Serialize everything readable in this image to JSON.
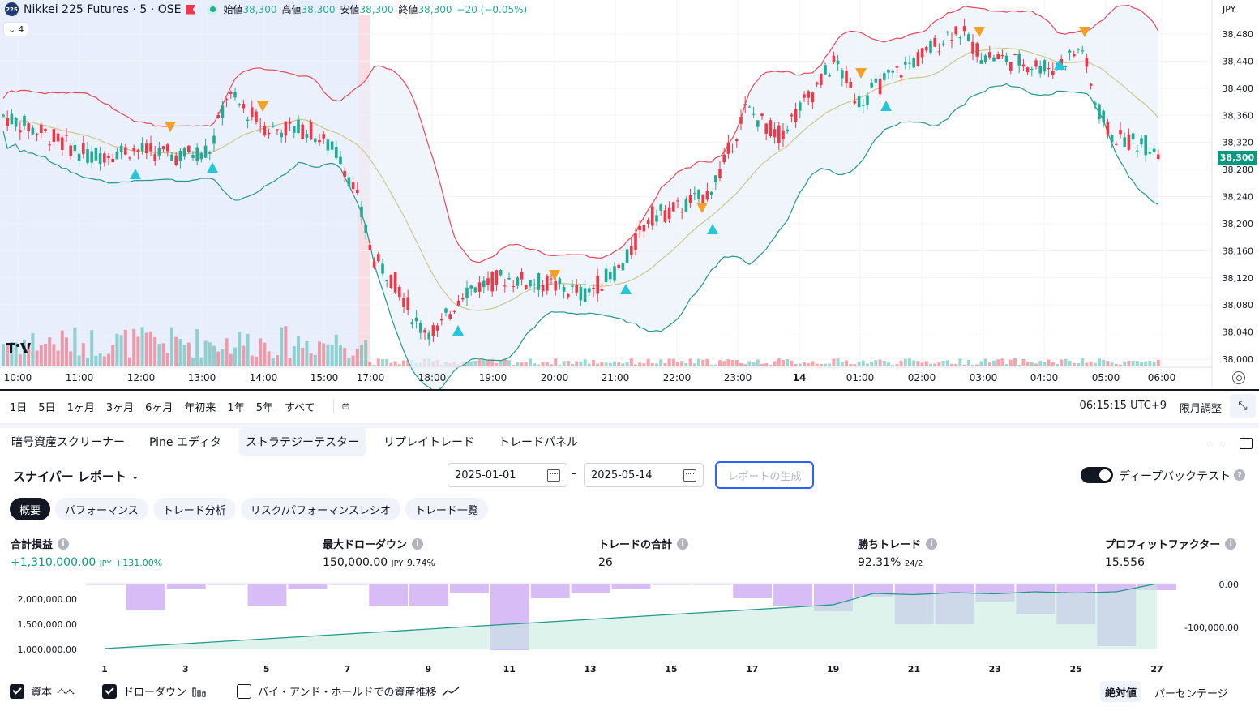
{
  "legend": {
    "badge": "225",
    "symbol": "Nikkei 225 Futures · 5 · OSE",
    "open_label": "始値",
    "open": "38,300",
    "high_label": "高値",
    "high": "38,300",
    "low_label": "安値",
    "low": "38,300",
    "close_label": "終値",
    "close": "38,300",
    "change": "−20 (−0.05%)",
    "indicator_count": "4"
  },
  "price_axis": {
    "currency": "JPY",
    "ticks": [
      "38,480",
      "38,440",
      "38,400",
      "38,360",
      "38,320",
      "38,280",
      "38,240",
      "38,200",
      "38,160",
      "38,120",
      "38,080",
      "38,040",
      "38,000"
    ],
    "last_price": "38,300"
  },
  "time_axis": [
    "10:00",
    "11:00",
    "12:00",
    "13:00",
    "14:00",
    "15:00",
    "17:00",
    "18:00",
    "19:00",
    "20:00",
    "21:00",
    "22:00",
    "23:00",
    "14",
    "01:00",
    "02:00",
    "03:00",
    "04:00",
    "05:00",
    "06:00"
  ],
  "colors": {
    "up": "#22ab94",
    "down": "#f23645",
    "upper_band": "#e8475a",
    "lower_band": "#22998a",
    "basis": "#c8c98a",
    "buy_marker": "#26c6da",
    "sell_marker": "#f5a023",
    "accent": "#2962ff"
  },
  "range_bar": {
    "buttons": [
      "1日",
      "5日",
      "1ヶ月",
      "3ヶ月",
      "6ヶ月",
      "年初来",
      "1年",
      "5年",
      "すべて"
    ],
    "clock": "06:15:15 UTC+9",
    "adjust": "限月調整"
  },
  "panel_tabs": [
    "暗号資産スクリーナー",
    "Pine エディタ",
    "ストラテジーテスター",
    "リプレイトレード",
    "トレードパネル"
  ],
  "report": {
    "title": "スナイパー レポート",
    "date_from": "2025-01-01",
    "date_to": "2025-05-14",
    "date_sep": "–",
    "generate": "レポートの生成",
    "deep_backtest": "ディープバックテスト",
    "sub_tabs": [
      "概要",
      "パフォーマンス",
      "トレード分析",
      "リスク/パフォーマンスレシオ",
      "トレード一覧"
    ]
  },
  "metrics": [
    {
      "label": "合計損益",
      "value": "+1,310,000.00",
      "unit": "JPY",
      "sub": "+131.00%"
    },
    {
      "label": "最大ドローダウン",
      "value": "150,000.00",
      "unit": "JPY",
      "sub": "9.74%"
    },
    {
      "label": "トレードの合計",
      "value": "26",
      "unit": "",
      "sub": ""
    },
    {
      "label": "勝ちトレード",
      "value": "92.31%",
      "unit": "",
      "sub": "24/2"
    },
    {
      "label": "プロフィットファクター",
      "value": "15.556",
      "unit": "",
      "sub": ""
    }
  ],
  "report_chart": {
    "left_ticks": [
      "2,000,000.00",
      "1,500,000.00",
      "1,000,000.00"
    ],
    "right_ticks": [
      "0.00",
      "-100,000.00"
    ],
    "x_ticks": [
      "1",
      "3",
      "5",
      "7",
      "9",
      "11",
      "13",
      "15",
      "17",
      "19",
      "21",
      "23",
      "25",
      "27"
    ]
  },
  "bottom_legend": {
    "equity": "資本",
    "drawdown": "ドローダウン",
    "buyhold": "バイ・アンド・ホールドでの資産推移",
    "absolute": "絶対値",
    "percentage": "パーセンテージ"
  }
}
